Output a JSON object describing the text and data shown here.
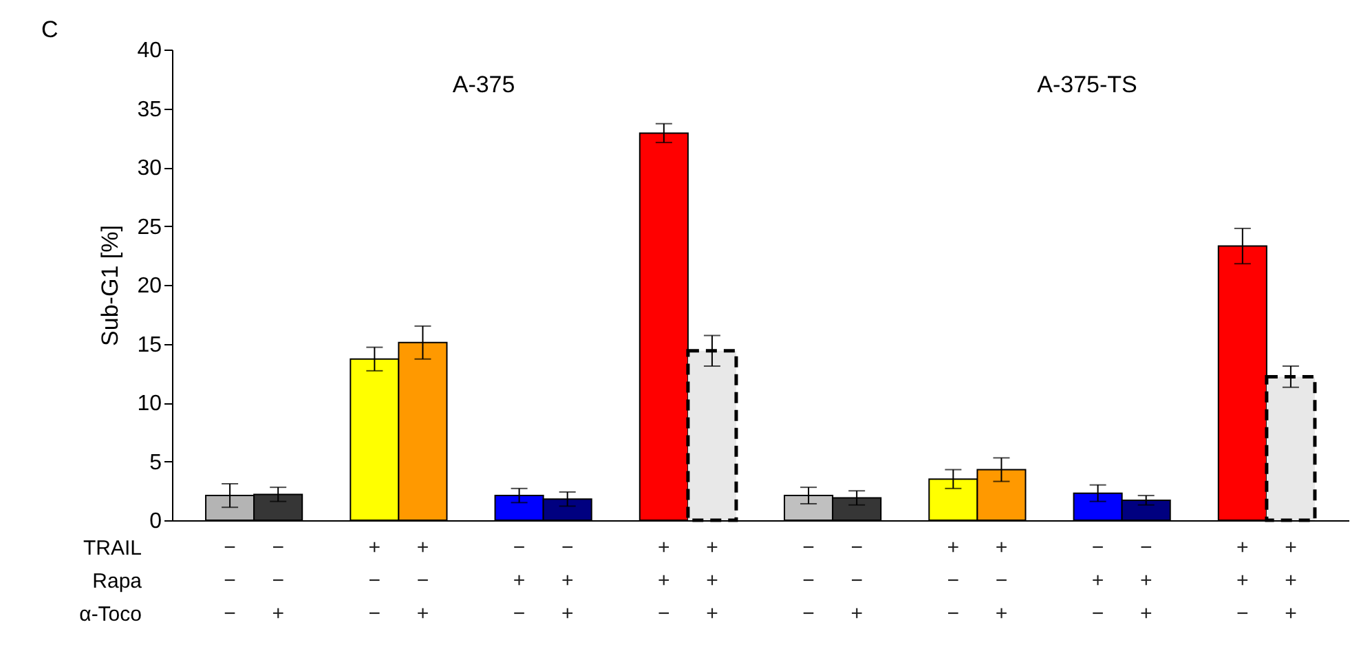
{
  "chart_data": {
    "type": "bar",
    "ylabel": "Sub-G1 [%]",
    "categories": [
      "−\n−\n−",
      "−\n−\n+",
      null,
      "+\n−\n−",
      "+\n−\n+",
      null,
      "−\n+\n−",
      "−\n+\n+",
      null,
      "+\n+\n−",
      "+\n+\n+",
      null,
      "−\n−\n−",
      "−\n−\n+",
      null,
      "+\n−\n−",
      "+\n−\n+",
      null,
      "−\n+\n−",
      "−\n+\n+",
      null,
      "+\n+\n−",
      "+\n+\n+"
    ],
    "series": [
      {
        "colors": [
          "#b4b4b4",
          "#363636",
          null,
          "#ffff00",
          "#ff9900",
          null,
          "#0000ff",
          "#000080",
          null,
          "#ff0000",
          null,
          null,
          "#c0c0c0",
          "#363636",
          null,
          "#ffff00",
          "#ff9900",
          null,
          "#0000ff",
          "#000080",
          null,
          "#ff0000",
          null
        ],
        "values": [
          2.1,
          2.2,
          null,
          13.7,
          15.1,
          null,
          2.1,
          1.8,
          null,
          32.9,
          null,
          null,
          2.1,
          1.9,
          null,
          3.5,
          4.3,
          null,
          2.3,
          1.7,
          null,
          23.3,
          null
        ],
        "errors": [
          1.0,
          0.6,
          null,
          1.0,
          1.4,
          null,
          0.6,
          0.6,
          null,
          0.8,
          null,
          null,
          0.7,
          0.6,
          null,
          0.8,
          1.0,
          null,
          0.7,
          0.4,
          null,
          1.5,
          null
        ]
      },
      {
        "color": "#e8e8e8",
        "line_style": "dashed",
        "values": [
          null,
          null,
          null,
          null,
          null,
          null,
          null,
          null,
          null,
          null,
          14.4,
          null,
          null,
          null,
          null,
          null,
          null,
          null,
          null,
          null,
          null,
          null,
          12.2
        ],
        "errors": [
          null,
          null,
          null,
          null,
          null,
          null,
          null,
          null,
          null,
          null,
          1.3,
          null,
          null,
          null,
          null,
          null,
          null,
          null,
          null,
          null,
          null,
          null,
          0.9
        ]
      }
    ],
    "ylim": [
      0,
      40
    ],
    "yticks": [
      0,
      5,
      10,
      15,
      20,
      25,
      30,
      35,
      40
    ],
    "grid": false,
    "annotations": [
      "C",
      "A-375",
      "A-375-TS",
      "TRAIL",
      "Rapa",
      "α-Toco"
    ]
  }
}
